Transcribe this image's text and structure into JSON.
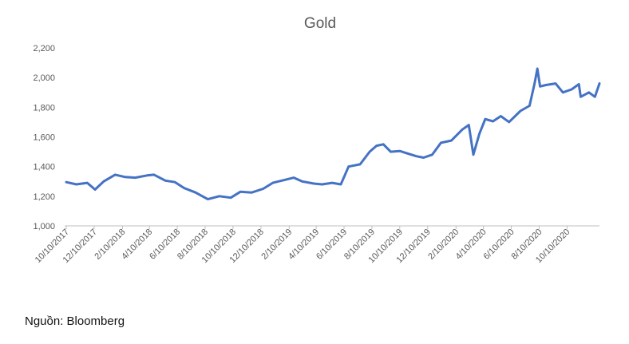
{
  "chart_data": {
    "type": "line",
    "title": "Gold",
    "xlabel": "",
    "ylabel": "",
    "ylim": [
      1000,
      2200
    ],
    "yticks": [
      "1,000",
      "1,200",
      "1,400",
      "1,600",
      "1,800",
      "2,000",
      "2,200"
    ],
    "x_ticks": [
      "10/10/2017",
      "12/10/2017",
      "2/10/2018",
      "4/10/2018",
      "6/10/2018",
      "8/10/2018",
      "10/10/2018",
      "12/10/2018",
      "2/10/2019",
      "4/10/2019",
      "6/10/2019",
      "8/10/2019",
      "10/10/2019",
      "12/10/2019",
      "2/10/2020",
      "4/10/2020",
      "6/10/2020",
      "8/10/2020",
      "10/10/2020"
    ],
    "x_range": [
      "2017-10-10",
      "2020-12-20"
    ],
    "grid": false,
    "line_color": "#4472c4",
    "series": [
      {
        "x": [
          "2017-10-10",
          "2017-11-01",
          "2017-11-25",
          "2017-12-12",
          "2017-12-31",
          "2018-01-25",
          "2018-02-15",
          "2018-03-10",
          "2018-04-05",
          "2018-04-20",
          "2018-05-15",
          "2018-06-05",
          "2018-06-25",
          "2018-07-20",
          "2018-08-16",
          "2018-09-10",
          "2018-10-05",
          "2018-10-26",
          "2018-11-20",
          "2018-12-15",
          "2019-01-05",
          "2019-01-31",
          "2019-02-20",
          "2019-03-10",
          "2019-04-05",
          "2019-04-23",
          "2019-05-15",
          "2019-06-03",
          "2019-06-20",
          "2019-07-15",
          "2019-08-05",
          "2019-08-20",
          "2019-09-04",
          "2019-09-20",
          "2019-10-10",
          "2019-10-25",
          "2019-11-15",
          "2019-12-01",
          "2019-12-20",
          "2020-01-08",
          "2020-01-31",
          "2020-02-24",
          "2020-03-09",
          "2020-03-19",
          "2020-04-01",
          "2020-04-14",
          "2020-05-01",
          "2020-05-18",
          "2020-06-05",
          "2020-06-30",
          "2020-07-20",
          "2020-07-31",
          "2020-08-06",
          "2020-08-12",
          "2020-08-25",
          "2020-09-15",
          "2020-10-01",
          "2020-10-20",
          "2020-11-05",
          "2020-11-09",
          "2020-11-27",
          "2020-12-10",
          "2020-12-20"
        ],
        "y": [
          1295,
          1280,
          1290,
          1245,
          1300,
          1345,
          1330,
          1325,
          1340,
          1345,
          1305,
          1295,
          1255,
          1225,
          1180,
          1200,
          1190,
          1230,
          1225,
          1250,
          1290,
          1310,
          1325,
          1300,
          1285,
          1280,
          1290,
          1280,
          1400,
          1415,
          1500,
          1540,
          1550,
          1500,
          1505,
          1490,
          1470,
          1460,
          1480,
          1560,
          1575,
          1650,
          1680,
          1480,
          1620,
          1720,
          1705,
          1740,
          1700,
          1775,
          1810,
          1960,
          2060,
          1940,
          1950,
          1960,
          1900,
          1920,
          1955,
          1870,
          1900,
          1870,
          1960
        ]
      }
    ]
  },
  "source": "Nguồn: Bloomberg"
}
